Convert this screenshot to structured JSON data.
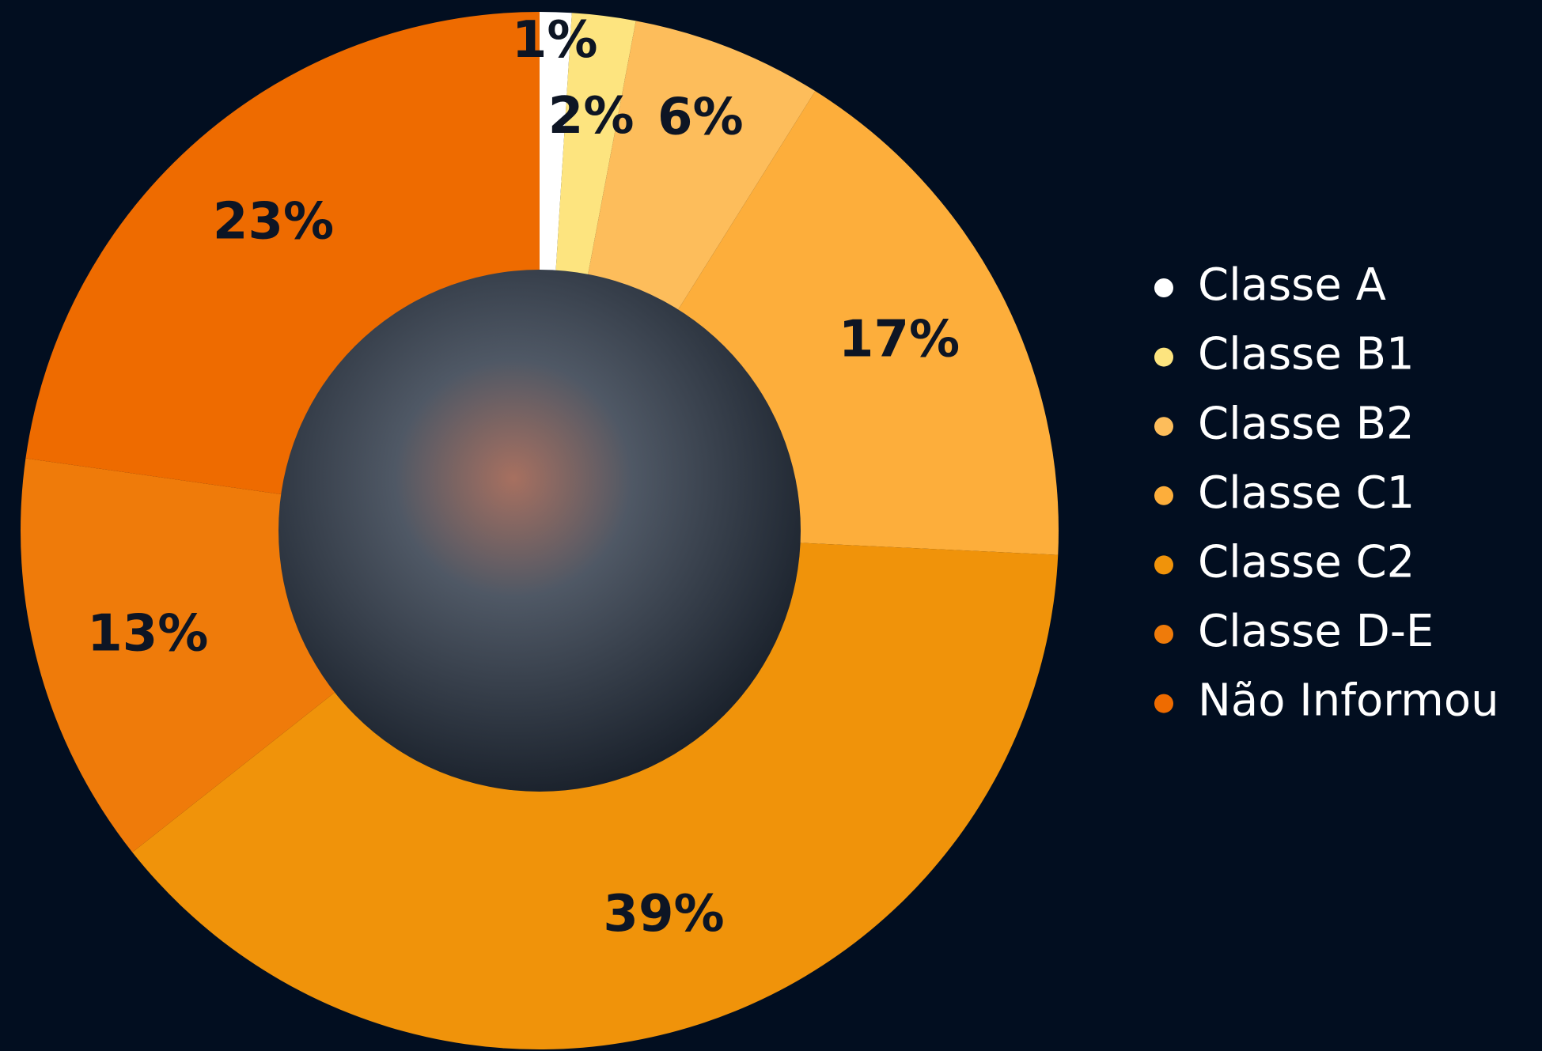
{
  "chart_data": {
    "type": "donut",
    "categories": [
      "Classe A",
      "Classe B1",
      "Classe B2",
      "Classe C1",
      "Classe C2",
      "Classe D-E",
      "Não Informou"
    ],
    "values": [
      1,
      2,
      6,
      17,
      39,
      13,
      23
    ],
    "value_labels": [
      "1%",
      "2%",
      "6%",
      "17%",
      "39%",
      "13%",
      "23%"
    ],
    "colors": [
      "#ffffff",
      "#fde47f",
      "#fdbd5b",
      "#fdae3b",
      "#f0930a",
      "#ef7b0a",
      "#ee6b00"
    ],
    "legend": "right"
  }
}
